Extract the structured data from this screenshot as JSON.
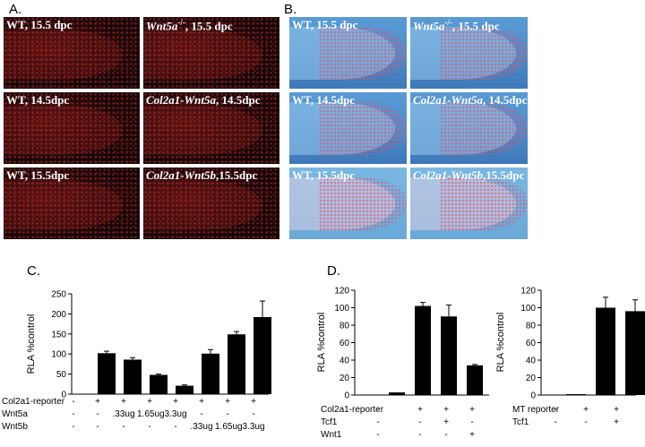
{
  "panel_labels": {
    "a": "A.",
    "b": "B.",
    "c": "C.",
    "d": "D."
  },
  "panelA": [
    {
      "label": "WT, 15.5 dpc"
    },
    {
      "label_italic": "Wnt5a",
      "label_sup": "-/-",
      "label_rest": ", 15.5 dpc"
    },
    {
      "label": "WT, 14.5dpc"
    },
    {
      "label_italic": "Col2a1-Wnt5a",
      "label_rest": ", 14.5dpc"
    },
    {
      "label": "WT, 15.5dpc"
    },
    {
      "label_italic": "Col2a1-Wnt5b",
      "label_rest": ",15.5dpc"
    }
  ],
  "panelB": [
    {
      "label": "WT, 15.5 dpc"
    },
    {
      "label_italic": "Wnt5a",
      "label_sup": "-/-",
      "label_rest": ", 15.5 dpc"
    },
    {
      "label": "WT, 14.5dpc"
    },
    {
      "label_italic": "Col2a1-Wnt5a",
      "label_rest": ", 14.5dpc"
    },
    {
      "label": "WT, 15.5dpc"
    },
    {
      "label_italic": "Col2a1-Wnt5b",
      "label_rest": ",15.5dpc"
    }
  ],
  "chart_data": [
    {
      "type": "bar",
      "ylabel": "RLA %control",
      "ylim": [
        0,
        250
      ],
      "yticks": [
        "0",
        "50",
        "100",
        "150",
        "200",
        "250"
      ],
      "values": [
        0,
        102,
        86,
        48,
        21,
        101,
        149,
        192
      ],
      "errors": [
        0,
        5,
        5,
        2,
        2,
        10,
        7,
        40
      ],
      "rows": [
        {
          "name": "Col2a1-reporter",
          "cells": [
            "-",
            "+",
            "+",
            "+",
            "+",
            "+",
            "+",
            "+"
          ]
        },
        {
          "name": "Wnt5a",
          "cells": [
            "-",
            "-",
            ".33ug",
            "1.65ug",
            "3.3ug",
            "-",
            "-",
            "-"
          ]
        },
        {
          "name": "Wnt5b",
          "cells": [
            "-",
            "-",
            "-",
            "-",
            "-",
            ".33ug",
            "1.65ug",
            "3.3ug"
          ]
        }
      ]
    },
    {
      "type": "bar",
      "ylabel": "RLA %control",
      "ylim": [
        0,
        120
      ],
      "yticks": [
        "0",
        "20",
        "40",
        "60",
        "80",
        "100",
        "120"
      ],
      "values": [
        3,
        102,
        90,
        34
      ],
      "errors": [
        0,
        4,
        13,
        1
      ],
      "rows": [
        {
          "name": "Col2a1-reporter",
          "cells": [
            "-",
            "+",
            "+",
            "+"
          ]
        },
        {
          "name": "Tcf1",
          "cells": [
            "-",
            "-",
            "+",
            "-"
          ]
        },
        {
          "name": "Wnt1",
          "cells": [
            "-",
            "-",
            "-",
            "+"
          ]
        }
      ]
    },
    {
      "type": "bar",
      "ylabel": "RLA %control",
      "ylim": [
        0,
        120
      ],
      "yticks": [
        "0",
        "20",
        "40",
        "60",
        "80",
        "100",
        "120"
      ],
      "values": [
        1,
        100,
        96
      ],
      "errors": [
        0,
        12,
        13
      ],
      "rows": [
        {
          "name": "MT reporter",
          "cells": [
            "-",
            "+",
            "+"
          ]
        },
        {
          "name": "Tcf1",
          "cells": [
            "-",
            "-",
            "+"
          ]
        }
      ]
    }
  ]
}
